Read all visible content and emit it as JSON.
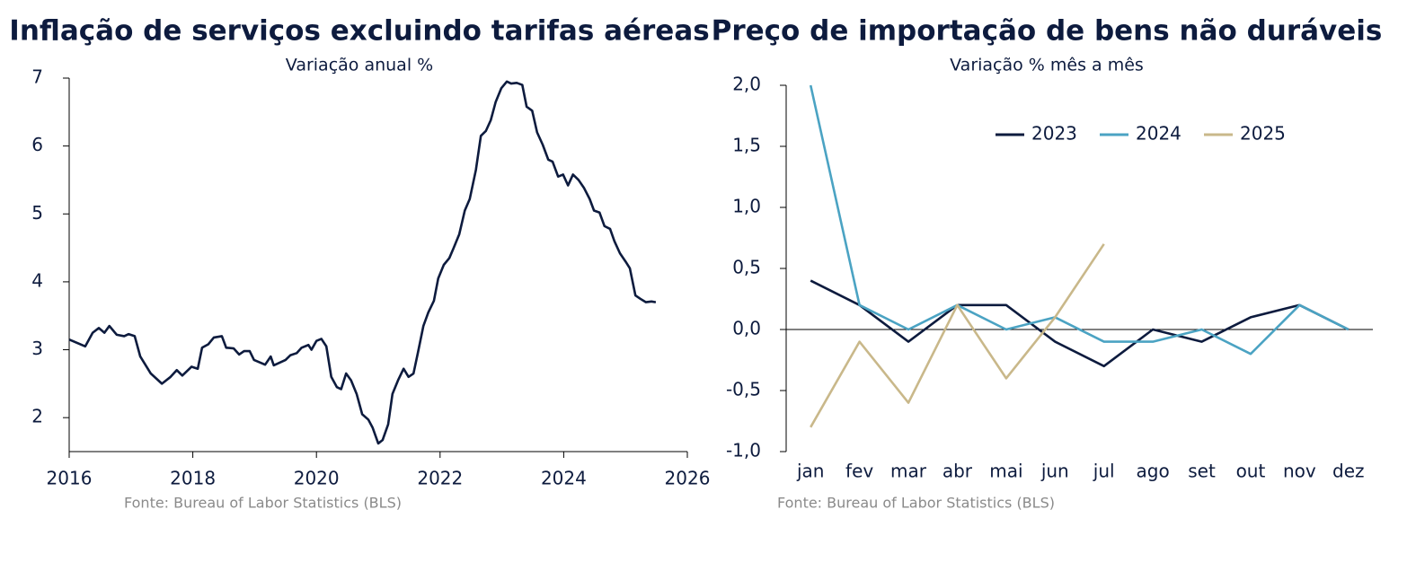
{
  "chart_data": [
    {
      "type": "line",
      "title": "Inflação de serviços excluindo tarifas aéreas",
      "subtitle": "Variação anual %",
      "source": "Fonte: Bureau of Labor Statistics (BLS)",
      "xlim": [
        2016,
        2026
      ],
      "xticks": [
        2016,
        2018,
        2020,
        2022,
        2024,
        2026
      ],
      "ylim": [
        1.5,
        7
      ],
      "yticks": [
        2,
        3,
        4,
        5,
        6,
        7
      ],
      "grid": false,
      "series": [
        {
          "name": null,
          "color": "#0d1b3e",
          "x": [
            2016.0,
            2016.26,
            2016.38,
            2016.48,
            2016.57,
            2016.65,
            2016.77,
            2016.89,
            2016.96,
            2017.06,
            2017.15,
            2017.32,
            2017.5,
            2017.64,
            2017.74,
            2017.83,
            2017.98,
            2018.08,
            2018.15,
            2018.25,
            2018.34,
            2018.47,
            2018.54,
            2018.66,
            2018.75,
            2018.83,
            2018.92,
            2018.99,
            2019.17,
            2019.26,
            2019.31,
            2019.5,
            2019.58,
            2019.68,
            2019.76,
            2019.87,
            2019.92,
            2020.0,
            2020.08,
            2020.16,
            2020.24,
            2020.33,
            2020.4,
            2020.48,
            2020.56,
            2020.65,
            2020.74,
            2020.84,
            2020.91,
            2021.0,
            2021.07,
            2021.16,
            2021.23,
            2021.32,
            2021.41,
            2021.49,
            2021.57,
            2021.64,
            2021.73,
            2021.81,
            2021.9,
            2021.97,
            2022.06,
            2022.15,
            2022.22,
            2022.31,
            2022.4,
            2022.48,
            2022.58,
            2022.66,
            2022.74,
            2022.82,
            2022.9,
            2022.99,
            2023.08,
            2023.15,
            2023.24,
            2023.33,
            2023.4,
            2023.49,
            2023.57,
            2023.66,
            2023.75,
            2023.82,
            2023.91,
            2023.99,
            2024.07,
            2024.15,
            2024.24,
            2024.33,
            2024.42,
            2024.49,
            2024.58,
            2024.66,
            2024.75,
            2024.82,
            2024.91,
            2025.0,
            2025.07,
            2025.16,
            2025.24,
            2025.33,
            2025.42,
            2025.49
          ],
          "values": [
            3.15,
            3.05,
            3.25,
            3.32,
            3.25,
            3.35,
            3.22,
            3.2,
            3.23,
            3.2,
            2.9,
            2.65,
            2.5,
            2.6,
            2.7,
            2.62,
            2.75,
            2.72,
            3.03,
            3.08,
            3.18,
            3.2,
            3.03,
            3.02,
            2.93,
            2.98,
            2.98,
            2.85,
            2.78,
            2.9,
            2.77,
            2.85,
            2.92,
            2.95,
            3.03,
            3.07,
            3.0,
            3.13,
            3.16,
            3.05,
            2.6,
            2.45,
            2.42,
            2.65,
            2.55,
            2.35,
            2.05,
            1.97,
            1.85,
            1.62,
            1.67,
            1.9,
            2.35,
            2.55,
            2.72,
            2.6,
            2.65,
            2.95,
            3.35,
            3.55,
            3.72,
            4.05,
            4.25,
            4.35,
            4.5,
            4.7,
            5.05,
            5.22,
            5.65,
            6.15,
            6.22,
            6.38,
            6.65,
            6.85,
            6.95,
            6.92,
            6.93,
            6.9,
            6.58,
            6.52,
            6.2,
            6.02,
            5.8,
            5.77,
            5.55,
            5.58,
            5.42,
            5.58,
            5.5,
            5.38,
            5.22,
            5.05,
            5.02,
            4.82,
            4.78,
            4.6,
            4.42,
            4.3,
            4.2,
            3.8,
            3.75,
            3.7,
            3.71,
            3.7
          ]
        }
      ]
    },
    {
      "type": "line",
      "title": "Preço de importação de bens não duráveis",
      "subtitle": "Variação % mês a mês",
      "source": "Fonte: Bureau of Labor Statistics (BLS)",
      "categories": [
        "jan",
        "fev",
        "mar",
        "abr",
        "mai",
        "jun",
        "jul",
        "ago",
        "set",
        "out",
        "nov",
        "dez"
      ],
      "ylim": [
        -1,
        2
      ],
      "yticks": [
        {
          "value": -1,
          "label": "-1,0"
        },
        {
          "value": -0.5,
          "label": "-0,5"
        },
        {
          "value": 0,
          "label": "0,0"
        },
        {
          "value": 0.5,
          "label": "0,5"
        },
        {
          "value": 1,
          "label": "1,0"
        },
        {
          "value": 1.5,
          "label": "1,5"
        },
        {
          "value": 2,
          "label": "2,0"
        }
      ],
      "zero_line": true,
      "legend": "top",
      "series": [
        {
          "name": "2023",
          "color": "#0d1b3e",
          "values": [
            0.4,
            0.2,
            -0.1,
            0.2,
            0.2,
            -0.1,
            -0.3,
            0,
            -0.1,
            0.1,
            0.2,
            0
          ]
        },
        {
          "name": "2024",
          "color": "#4ba3c3",
          "values": [
            2.0,
            0.2,
            0,
            0.2,
            0,
            0.1,
            -0.1,
            -0.1,
            0,
            -0.2,
            0.2,
            0
          ]
        },
        {
          "name": "2025",
          "color": "#c9b88a",
          "values": [
            -0.8,
            -0.1,
            -0.6,
            0.2,
            -0.4,
            0.1,
            0.7,
            null,
            null,
            null,
            null,
            null
          ]
        }
      ]
    }
  ]
}
